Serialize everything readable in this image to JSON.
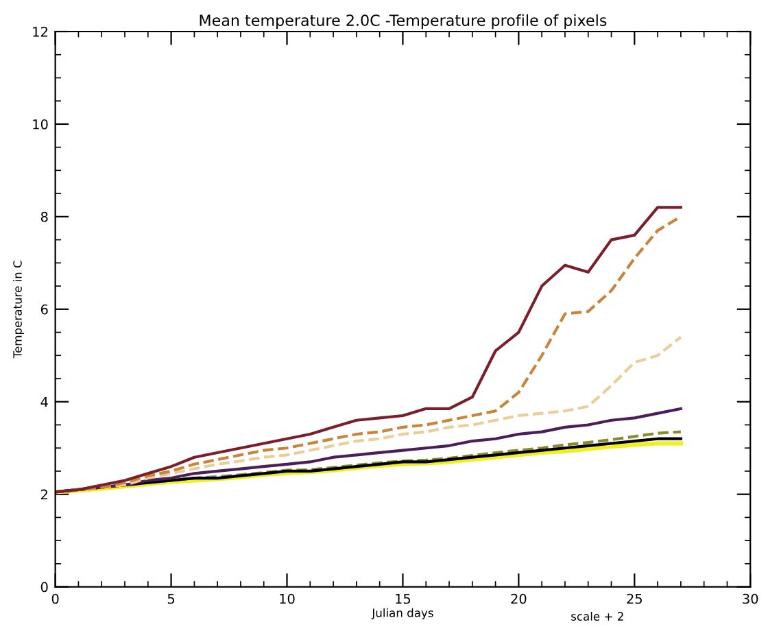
{
  "chart_data": {
    "type": "line",
    "title": "Mean temperature 2.0C -Temperature profile of pixels",
    "xlabel": "Julian days",
    "ylabel": "Temperature in C",
    "annotations": [
      "scale + 2"
    ],
    "x": [
      0,
      1,
      2,
      3,
      4,
      5,
      6,
      7,
      8,
      9,
      10,
      11,
      12,
      13,
      14,
      15,
      16,
      17,
      18,
      19,
      20,
      21,
      22,
      23,
      24,
      25,
      26,
      27
    ],
    "xlim": [
      0,
      30
    ],
    "xticks": [
      0,
      5,
      10,
      15,
      20,
      25,
      30
    ],
    "ylim": [
      0,
      12
    ],
    "yticks": [
      0,
      2,
      4,
      6,
      8,
      10,
      12
    ],
    "grid": false,
    "legend": false,
    "marker": "none",
    "series": [
      {
        "color": "#f0f020",
        "line_style": "solid",
        "values": [
          2.05,
          2.08,
          2.12,
          2.17,
          2.22,
          2.27,
          2.3,
          2.33,
          2.37,
          2.42,
          2.46,
          2.48,
          2.52,
          2.57,
          2.62,
          2.65,
          2.67,
          2.7,
          2.75,
          2.8,
          2.85,
          2.9,
          2.93,
          2.98,
          3.03,
          3.07,
          3.1,
          3.1
        ]
      },
      {
        "color": "#8a8a30",
        "line_style": "dashed",
        "values": [
          2.05,
          2.1,
          2.15,
          2.2,
          2.25,
          2.3,
          2.35,
          2.38,
          2.42,
          2.47,
          2.52,
          2.53,
          2.58,
          2.63,
          2.68,
          2.72,
          2.74,
          2.78,
          2.84,
          2.9,
          2.95,
          3.0,
          3.07,
          3.12,
          3.18,
          3.25,
          3.32,
          3.35
        ]
      },
      {
        "color": "#000000",
        "line_style": "solid",
        "values": [
          2.05,
          2.1,
          2.15,
          2.2,
          2.25,
          2.3,
          2.35,
          2.35,
          2.4,
          2.45,
          2.5,
          2.5,
          2.55,
          2.6,
          2.65,
          2.7,
          2.7,
          2.75,
          2.8,
          2.85,
          2.9,
          2.95,
          3.0,
          3.05,
          3.1,
          3.15,
          3.2,
          3.2
        ]
      },
      {
        "color": "#4b1e5a",
        "line_style": "solid",
        "values": [
          2.05,
          2.1,
          2.15,
          2.2,
          2.3,
          2.35,
          2.45,
          2.5,
          2.55,
          2.6,
          2.65,
          2.7,
          2.8,
          2.85,
          2.9,
          2.95,
          3.0,
          3.05,
          3.15,
          3.2,
          3.3,
          3.35,
          3.45,
          3.5,
          3.6,
          3.65,
          3.75,
          3.85
        ]
      },
      {
        "color": "#e8cf9a",
        "line_style": "dashed",
        "values": [
          2.05,
          2.1,
          2.15,
          2.2,
          2.35,
          2.45,
          2.55,
          2.65,
          2.72,
          2.8,
          2.85,
          2.95,
          3.05,
          3.15,
          3.2,
          3.3,
          3.35,
          3.45,
          3.5,
          3.6,
          3.7,
          3.75,
          3.8,
          3.9,
          4.35,
          4.85,
          5.0,
          5.4
        ]
      },
      {
        "color": "#c8843a",
        "line_style": "dashed",
        "values": [
          2.05,
          2.1,
          2.15,
          2.25,
          2.4,
          2.5,
          2.65,
          2.75,
          2.85,
          2.95,
          3.0,
          3.1,
          3.2,
          3.3,
          3.35,
          3.45,
          3.5,
          3.6,
          3.7,
          3.8,
          4.2,
          5.0,
          5.9,
          5.95,
          6.4,
          7.1,
          7.7,
          8.0
        ]
      },
      {
        "color": "#7a1f2b",
        "line_style": "solid",
        "values": [
          2.05,
          2.1,
          2.2,
          2.3,
          2.45,
          2.6,
          2.8,
          2.9,
          3.0,
          3.1,
          3.2,
          3.3,
          3.45,
          3.6,
          3.65,
          3.7,
          3.85,
          3.85,
          4.1,
          5.1,
          5.5,
          6.5,
          6.95,
          6.8,
          7.5,
          7.6,
          8.2,
          8.2
        ]
      }
    ]
  }
}
